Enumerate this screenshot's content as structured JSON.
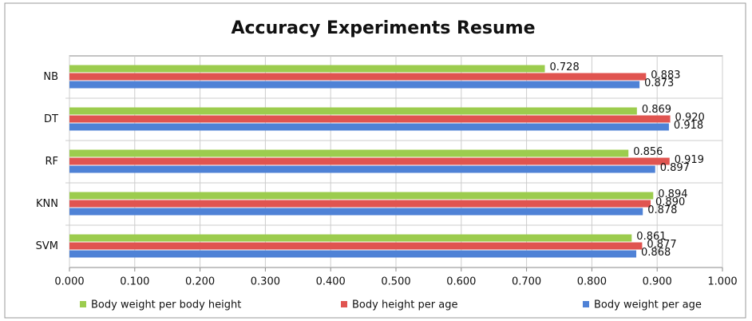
{
  "chart_data": {
    "type": "bar",
    "orientation": "horizontal",
    "title": "Accuracy Experiments Resume",
    "categories": [
      "NB",
      "DT",
      "RF",
      "KNN",
      "SVM"
    ],
    "series": [
      {
        "name": "Body weight per body height",
        "color": "#9ccc4e",
        "values": [
          0.728,
          0.869,
          0.856,
          0.894,
          0.861
        ],
        "value_labels": [
          "0.728",
          "0.869",
          "0.856",
          "0.894",
          "0.861"
        ]
      },
      {
        "name": "Body height per age",
        "color": "#e05450",
        "values": [
          0.883,
          0.92,
          0.919,
          0.89,
          0.877
        ],
        "value_labels": [
          "0.883",
          "0.920",
          "0.919",
          "0.890",
          "0.877"
        ]
      },
      {
        "name": "Body weight per age",
        "color": "#4f82d6",
        "values": [
          0.873,
          0.918,
          0.897,
          0.878,
          0.868
        ],
        "value_labels": [
          "0.873",
          "0.918",
          "0.897",
          "0.878",
          "0.868"
        ]
      }
    ],
    "xlim": [
      0,
      1
    ],
    "xticks": [
      {
        "value": 0,
        "label": "0.000"
      },
      {
        "value": 0.1,
        "label": "0.100"
      },
      {
        "value": 0.2,
        "label": "0.200"
      },
      {
        "value": 0.3,
        "label": "0.300"
      },
      {
        "value": 0.4,
        "label": "0.400"
      },
      {
        "value": 0.5,
        "label": "0.500"
      },
      {
        "value": 0.6,
        "label": "0.600"
      },
      {
        "value": 0.7,
        "label": "0.700"
      },
      {
        "value": 0.8,
        "label": "0.800"
      },
      {
        "value": 0.9,
        "label": "0.900"
      },
      {
        "value": 1,
        "label": "1.000"
      }
    ],
    "grid": true,
    "legend": "bottom"
  }
}
